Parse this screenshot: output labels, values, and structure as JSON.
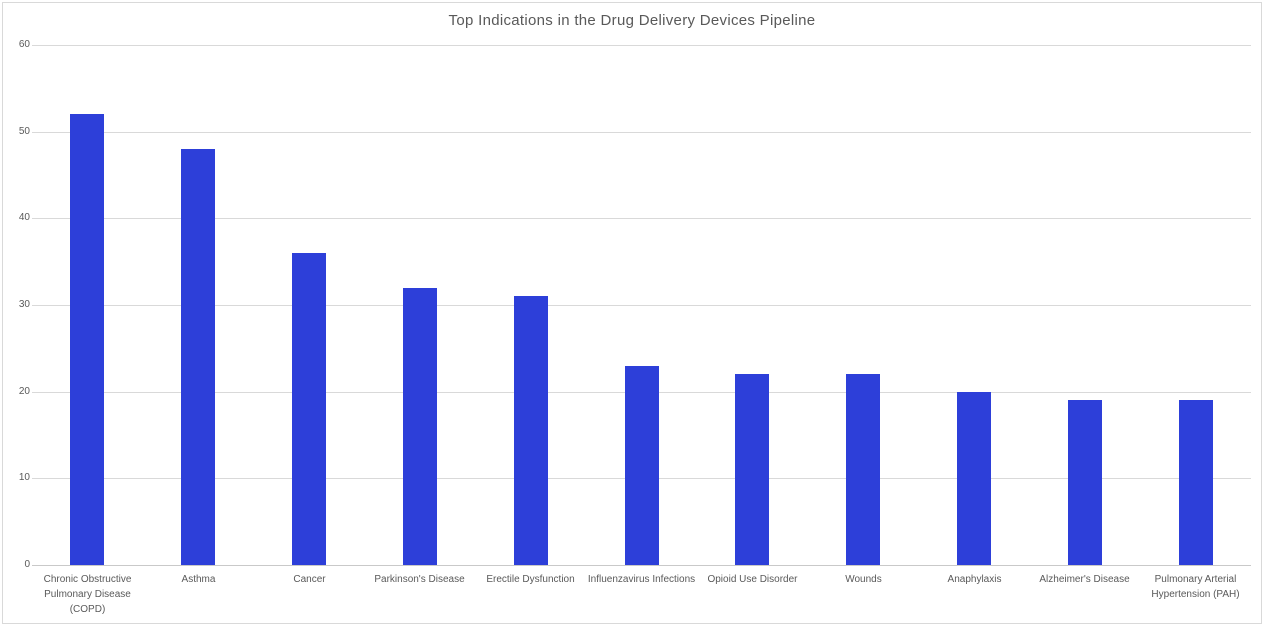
{
  "chart_data": {
    "type": "bar",
    "title": "Top Indications in the Drug Delivery Devices Pipeline",
    "categories": [
      "Chronic Obstructive Pulmonary Disease (COPD)",
      "Asthma",
      "Cancer",
      "Parkinson's Disease",
      "Erectile Dysfunction",
      "Influenzavirus Infections",
      "Opioid Use Disorder",
      "Wounds",
      "Anaphylaxis",
      "Alzheimer's Disease",
      "Pulmonary Arterial Hypertension (PAH)"
    ],
    "values": [
      52,
      48,
      36,
      32,
      31,
      23,
      22,
      22,
      20,
      19,
      19
    ],
    "xlabel": "",
    "ylabel": "",
    "yticks": [
      0,
      10,
      20,
      30,
      40,
      50,
      60
    ],
    "ylim": [
      0,
      60
    ],
    "grid": "horizontal",
    "legend_position": "none",
    "colors": {
      "bar": "#2D3FD9",
      "title_text": "#595959",
      "axis_text": "#595959",
      "gridline": "#D9D9D9",
      "axis_line": "#C9C9C9",
      "chart_border": "#D9D9D9",
      "background": "#FFFFFF"
    }
  }
}
